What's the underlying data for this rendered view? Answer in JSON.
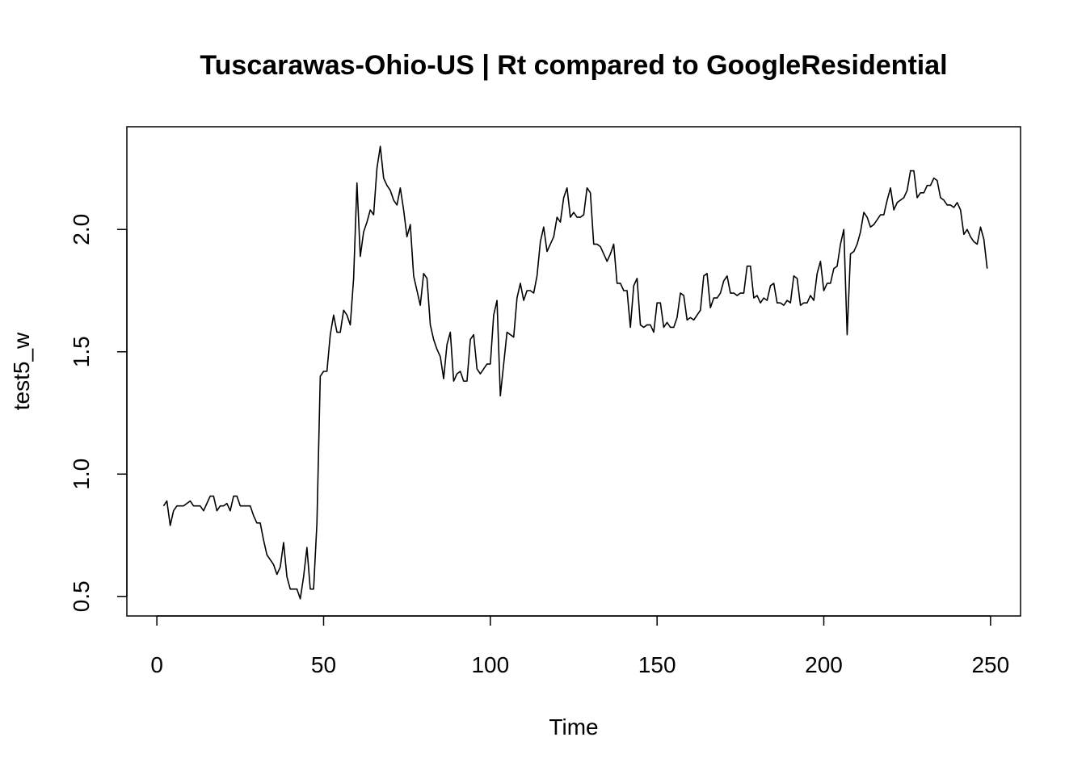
{
  "chart_data": {
    "type": "line",
    "title": "Tuscarawas-Ohio-US | Rt compared to GoogleResidential",
    "xlabel": "Time",
    "ylabel": "test5_w",
    "xlim": [
      -9,
      259
    ],
    "ylim": [
      0.42,
      2.42
    ],
    "x_ticks": [
      0,
      50,
      100,
      150,
      200,
      250
    ],
    "y_ticks": [
      0.5,
      1.0,
      1.5,
      2.0
    ],
    "x_tick_labels": [
      "0",
      "50",
      "100",
      "150",
      "200",
      "250"
    ],
    "y_tick_labels": [
      "0.5",
      "1.0",
      "1.5",
      "2.0"
    ],
    "grid": false,
    "series": [
      {
        "name": "test5_w",
        "color": "#000000",
        "x_start": 2,
        "values": [
          0.87,
          0.89,
          0.79,
          0.85,
          0.87,
          0.87,
          0.87,
          0.88,
          0.89,
          0.87,
          0.87,
          0.87,
          0.85,
          0.88,
          0.91,
          0.91,
          0.85,
          0.87,
          0.87,
          0.88,
          0.85,
          0.91,
          0.91,
          0.87,
          0.87,
          0.87,
          0.87,
          0.83,
          0.8,
          0.8,
          0.73,
          0.67,
          0.65,
          0.63,
          0.59,
          0.62,
          0.72,
          0.58,
          0.53,
          0.53,
          0.53,
          0.49,
          0.58,
          0.7,
          0.53,
          0.53,
          0.8,
          1.4,
          1.42,
          1.42,
          1.57,
          1.65,
          1.58,
          1.58,
          1.67,
          1.65,
          1.61,
          1.8,
          2.19,
          1.89,
          1.99,
          2.03,
          2.08,
          2.06,
          2.25,
          2.34,
          2.21,
          2.18,
          2.16,
          2.12,
          2.1,
          2.17,
          2.08,
          1.97,
          2.02,
          1.81,
          1.75,
          1.69,
          1.82,
          1.8,
          1.61,
          1.55,
          1.51,
          1.48,
          1.39,
          1.53,
          1.58,
          1.38,
          1.41,
          1.42,
          1.38,
          1.38,
          1.55,
          1.57,
          1.43,
          1.41,
          1.43,
          1.45,
          1.45,
          1.65,
          1.71,
          1.32,
          1.45,
          1.58,
          1.57,
          1.56,
          1.72,
          1.78,
          1.71,
          1.75,
          1.75,
          1.74,
          1.81,
          1.95,
          2.01,
          1.91,
          1.94,
          1.97,
          2.05,
          2.03,
          2.13,
          2.17,
          2.05,
          2.07,
          2.05,
          2.05,
          2.06,
          2.17,
          2.15,
          1.94,
          1.94,
          1.93,
          1.9,
          1.87,
          1.9,
          1.94,
          1.78,
          1.78,
          1.75,
          1.75,
          1.6,
          1.77,
          1.8,
          1.61,
          1.6,
          1.61,
          1.61,
          1.58,
          1.7,
          1.7,
          1.6,
          1.62,
          1.6,
          1.6,
          1.64,
          1.74,
          1.73,
          1.63,
          1.64,
          1.63,
          1.65,
          1.67,
          1.81,
          1.82,
          1.68,
          1.72,
          1.72,
          1.74,
          1.79,
          1.81,
          1.74,
          1.74,
          1.73,
          1.74,
          1.74,
          1.85,
          1.85,
          1.72,
          1.73,
          1.7,
          1.72,
          1.71,
          1.77,
          1.78,
          1.7,
          1.7,
          1.69,
          1.71,
          1.7,
          1.81,
          1.8,
          1.69,
          1.7,
          1.7,
          1.73,
          1.71,
          1.82,
          1.87,
          1.75,
          1.78,
          1.78,
          1.84,
          1.85,
          1.94,
          2.0,
          1.57,
          1.9,
          1.91,
          1.94,
          1.99,
          2.07,
          2.05,
          2.01,
          2.02,
          2.04,
          2.06,
          2.06,
          2.12,
          2.17,
          2.08,
          2.11,
          2.12,
          2.13,
          2.16,
          2.24,
          2.24,
          2.13,
          2.15,
          2.15,
          2.18,
          2.18,
          2.21,
          2.2,
          2.13,
          2.12,
          2.1,
          2.1,
          2.09,
          2.11,
          2.08,
          1.98,
          2.0,
          1.97,
          1.95,
          1.94,
          2.01,
          1.96,
          1.84
        ]
      }
    ]
  }
}
